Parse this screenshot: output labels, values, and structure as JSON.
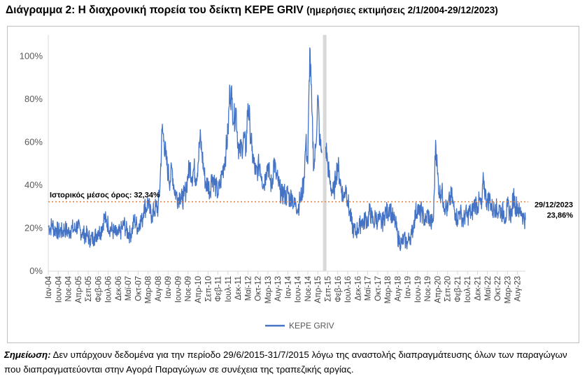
{
  "title": {
    "main": "Διάγραμμα 2: Η διαχρονική πορεία του δείκτη KEPE GRIV",
    "sub": "(ημερήσιες εκτιμήσεις 2/1/2004-29/12/2023)"
  },
  "note": {
    "label": "Σημείωση:",
    "text": " Δεν υπάρχουν δεδομένα για την περίοδο 29/6/2015-31/7/2015 λόγω της αναστολής διαπραγμάτευσης όλων των παραγώγων που διαπραγματεύονται στην Αγορά Παραγώγων σε συνέχεια της τραπεζικής αργίας."
  },
  "colors": {
    "series": "#4472c4",
    "mean_line": "#ed7d31",
    "gap_band": "#d9d9d9",
    "axis": "#d9d9d9"
  },
  "chart_data": {
    "type": "line",
    "x_unit": "month",
    "x_start": "2004-01",
    "x_end": "2023-12",
    "ylim": [
      0,
      1.1
    ],
    "ytick_labels": [
      "0%",
      "20%",
      "40%",
      "60%",
      "80%",
      "100%"
    ],
    "ytick_values": [
      0,
      0.2,
      0.4,
      0.6,
      0.8,
      1.0
    ],
    "xtick_labels": [
      "Ιαν-04",
      "Ιουν-04",
      "Νοε-04",
      "Απρ-05",
      "Σεπ-05",
      "Φεβ-06",
      "Ιουλ-06",
      "Δεκ-06",
      "Μαϊ-07",
      "Οκτ-07",
      "Μαρ-08",
      "Αυγ-08",
      "Ιαν-09",
      "Ιουν-09",
      "Νοε-09",
      "Απρ-10",
      "Σεπ-10",
      "Φεβ-11",
      "Ιουλ-11",
      "Δεκ-11",
      "Μαϊ-12",
      "Οκτ-12",
      "Μαρ-13",
      "Αυγ-13",
      "Ιαν-14",
      "Ιουν-14",
      "Νοε-14",
      "Απρ-15",
      "Σεπ-15",
      "Φεβ-16",
      "Ιουλ-16",
      "Δεκ-16",
      "Μαϊ-17",
      "Οκτ-17",
      "Μαρ-18",
      "Αυγ-18",
      "Ιαν-19",
      "Ιουν-19",
      "Νοε-19",
      "Απρ-20",
      "Σεπ-20",
      "Φεβ-21",
      "Ιουλ-21",
      "Δεκ-21",
      "Μαϊ-22",
      "Οκτ-22",
      "Μαρ-23",
      "Αυγ-23"
    ],
    "xtick_step_months": 5,
    "series": [
      {
        "name": "KEPE GRIV",
        "points": [
          [
            "2004-01",
            0.21
          ],
          [
            "2004-02",
            0.2
          ],
          [
            "2004-03",
            0.22
          ],
          [
            "2004-04",
            0.19
          ],
          [
            "2004-05",
            0.2
          ],
          [
            "2004-06",
            0.18
          ],
          [
            "2004-07",
            0.19
          ],
          [
            "2004-08",
            0.18
          ],
          [
            "2004-09",
            0.2
          ],
          [
            "2004-10",
            0.19
          ],
          [
            "2004-11",
            0.18
          ],
          [
            "2004-12",
            0.19
          ],
          [
            "2005-01",
            0.2
          ],
          [
            "2005-02",
            0.19
          ],
          [
            "2005-03",
            0.21
          ],
          [
            "2005-04",
            0.2
          ],
          [
            "2005-05",
            0.19
          ],
          [
            "2005-06",
            0.18
          ],
          [
            "2005-07",
            0.17
          ],
          [
            "2005-08",
            0.17
          ],
          [
            "2005-09",
            0.16
          ],
          [
            "2005-10",
            0.15
          ],
          [
            "2005-11",
            0.15
          ],
          [
            "2005-12",
            0.16
          ],
          [
            "2006-01",
            0.17
          ],
          [
            "2006-02",
            0.19
          ],
          [
            "2006-03",
            0.18
          ],
          [
            "2006-04",
            0.21
          ],
          [
            "2006-05",
            0.25
          ],
          [
            "2006-06",
            0.23
          ],
          [
            "2006-07",
            0.22
          ],
          [
            "2006-08",
            0.2
          ],
          [
            "2006-09",
            0.19
          ],
          [
            "2006-10",
            0.18
          ],
          [
            "2006-11",
            0.17
          ],
          [
            "2006-12",
            0.17
          ],
          [
            "2007-01",
            0.18
          ],
          [
            "2007-02",
            0.2
          ],
          [
            "2007-03",
            0.22
          ],
          [
            "2007-04",
            0.19
          ],
          [
            "2007-05",
            0.18
          ],
          [
            "2007-06",
            0.17
          ],
          [
            "2007-07",
            0.19
          ],
          [
            "2007-08",
            0.24
          ],
          [
            "2007-09",
            0.22
          ],
          [
            "2007-10",
            0.2
          ],
          [
            "2007-11",
            0.24
          ],
          [
            "2007-12",
            0.23
          ],
          [
            "2008-01",
            0.31
          ],
          [
            "2008-02",
            0.29
          ],
          [
            "2008-03",
            0.33
          ],
          [
            "2008-04",
            0.27
          ],
          [
            "2008-05",
            0.26
          ],
          [
            "2008-06",
            0.28
          ],
          [
            "2008-07",
            0.3
          ],
          [
            "2008-08",
            0.29
          ],
          [
            "2008-09",
            0.41
          ],
          [
            "2008-10",
            0.66
          ],
          [
            "2008-11",
            0.61
          ],
          [
            "2008-12",
            0.52
          ],
          [
            "2009-01",
            0.46
          ],
          [
            "2009-02",
            0.42
          ],
          [
            "2009-03",
            0.48
          ],
          [
            "2009-04",
            0.39
          ],
          [
            "2009-05",
            0.36
          ],
          [
            "2009-06",
            0.34
          ],
          [
            "2009-07",
            0.36
          ],
          [
            "2009-08",
            0.33
          ],
          [
            "2009-09",
            0.35
          ],
          [
            "2009-10",
            0.38
          ],
          [
            "2009-11",
            0.45
          ],
          [
            "2009-12",
            0.49
          ],
          [
            "2010-01",
            0.44
          ],
          [
            "2010-02",
            0.48
          ],
          [
            "2010-03",
            0.43
          ],
          [
            "2010-04",
            0.5
          ],
          [
            "2010-05",
            0.62
          ],
          [
            "2010-06",
            0.55
          ],
          [
            "2010-07",
            0.46
          ],
          [
            "2010-08",
            0.4
          ],
          [
            "2010-09",
            0.41
          ],
          [
            "2010-10",
            0.37
          ],
          [
            "2010-11",
            0.45
          ],
          [
            "2010-12",
            0.42
          ],
          [
            "2011-01",
            0.39
          ],
          [
            "2011-02",
            0.36
          ],
          [
            "2011-03",
            0.4
          ],
          [
            "2011-04",
            0.45
          ],
          [
            "2011-05",
            0.5
          ],
          [
            "2011-06",
            0.56
          ],
          [
            "2011-07",
            0.64
          ],
          [
            "2011-08",
            0.85
          ],
          [
            "2011-09",
            0.8
          ],
          [
            "2011-10",
            0.7
          ],
          [
            "2011-11",
            0.76
          ],
          [
            "2011-12",
            0.6
          ],
          [
            "2012-01",
            0.55
          ],
          [
            "2012-02",
            0.58
          ],
          [
            "2012-03",
            0.62
          ],
          [
            "2012-04",
            0.56
          ],
          [
            "2012-05",
            0.78
          ],
          [
            "2012-06",
            0.68
          ],
          [
            "2012-07",
            0.56
          ],
          [
            "2012-08",
            0.5
          ],
          [
            "2012-09",
            0.45
          ],
          [
            "2012-10",
            0.48
          ],
          [
            "2012-11",
            0.5
          ],
          [
            "2012-12",
            0.44
          ],
          [
            "2013-01",
            0.4
          ],
          [
            "2013-02",
            0.46
          ],
          [
            "2013-03",
            0.5
          ],
          [
            "2013-04",
            0.43
          ],
          [
            "2013-05",
            0.39
          ],
          [
            "2013-06",
            0.52
          ],
          [
            "2013-07",
            0.45
          ],
          [
            "2013-08",
            0.42
          ],
          [
            "2013-09",
            0.38
          ],
          [
            "2013-10",
            0.35
          ],
          [
            "2013-11",
            0.37
          ],
          [
            "2013-12",
            0.34
          ],
          [
            "2014-01",
            0.37
          ],
          [
            "2014-02",
            0.33
          ],
          [
            "2014-03",
            0.36
          ],
          [
            "2014-04",
            0.3
          ],
          [
            "2014-05",
            0.32
          ],
          [
            "2014-06",
            0.29
          ],
          [
            "2014-07",
            0.33
          ],
          [
            "2014-08",
            0.36
          ],
          [
            "2014-09",
            0.42
          ],
          [
            "2014-10",
            0.6
          ],
          [
            "2014-11",
            0.5
          ],
          [
            "2014-12",
            1.04
          ],
          [
            "2015-01",
            0.75
          ],
          [
            "2015-02",
            0.48
          ],
          [
            "2015-03",
            0.58
          ],
          [
            "2015-04",
            0.82
          ],
          [
            "2015-05",
            0.6
          ],
          [
            "2015-06",
            0.55
          ],
          [
            "2015-07",
            null
          ],
          [
            "2015-08",
            0.58
          ],
          [
            "2015-09",
            0.5
          ],
          [
            "2015-10",
            0.42
          ],
          [
            "2015-11",
            0.38
          ],
          [
            "2015-12",
            0.36
          ],
          [
            "2016-01",
            0.44
          ],
          [
            "2016-02",
            0.5
          ],
          [
            "2016-03",
            0.43
          ],
          [
            "2016-04",
            0.38
          ],
          [
            "2016-05",
            0.34
          ],
          [
            "2016-06",
            0.4
          ],
          [
            "2016-07",
            0.33
          ],
          [
            "2016-08",
            0.27
          ],
          [
            "2016-09",
            0.22
          ],
          [
            "2016-10",
            0.19
          ],
          [
            "2016-11",
            0.18
          ],
          [
            "2016-12",
            0.2
          ],
          [
            "2017-01",
            0.21
          ],
          [
            "2017-02",
            0.24
          ],
          [
            "2017-03",
            0.22
          ],
          [
            "2017-04",
            0.25
          ],
          [
            "2017-05",
            0.23
          ],
          [
            "2017-06",
            0.28
          ],
          [
            "2017-07",
            0.25
          ],
          [
            "2017-08",
            0.22
          ],
          [
            "2017-09",
            0.26
          ],
          [
            "2017-10",
            0.23
          ],
          [
            "2017-11",
            0.24
          ],
          [
            "2017-12",
            0.22
          ],
          [
            "2018-01",
            0.24
          ],
          [
            "2018-02",
            0.28
          ],
          [
            "2018-03",
            0.27
          ],
          [
            "2018-04",
            0.31
          ],
          [
            "2018-05",
            0.26
          ],
          [
            "2018-06",
            0.24
          ],
          [
            "2018-07",
            0.22
          ],
          [
            "2018-08",
            0.16
          ],
          [
            "2018-09",
            0.14
          ],
          [
            "2018-10",
            0.13
          ],
          [
            "2018-11",
            0.15
          ],
          [
            "2018-12",
            0.14
          ],
          [
            "2019-01",
            0.13
          ],
          [
            "2019-02",
            0.16
          ],
          [
            "2019-03",
            0.17
          ],
          [
            "2019-04",
            0.22
          ],
          [
            "2019-05",
            0.27
          ],
          [
            "2019-06",
            0.3
          ],
          [
            "2019-07",
            0.26
          ],
          [
            "2019-08",
            0.28
          ],
          [
            "2019-09",
            0.25
          ],
          [
            "2019-10",
            0.23
          ],
          [
            "2019-11",
            0.27
          ],
          [
            "2019-12",
            0.24
          ],
          [
            "2020-01",
            0.22
          ],
          [
            "2020-02",
            0.25
          ],
          [
            "2020-03",
            0.61
          ],
          [
            "2020-04",
            0.45
          ],
          [
            "2020-05",
            0.36
          ],
          [
            "2020-06",
            0.38
          ],
          [
            "2020-07",
            0.32
          ],
          [
            "2020-08",
            0.3
          ],
          [
            "2020-09",
            0.28
          ],
          [
            "2020-10",
            0.33
          ],
          [
            "2020-11",
            0.35
          ],
          [
            "2020-12",
            0.3
          ],
          [
            "2021-01",
            0.27
          ],
          [
            "2021-02",
            0.24
          ],
          [
            "2021-03",
            0.28
          ],
          [
            "2021-04",
            0.26
          ],
          [
            "2021-05",
            0.23
          ],
          [
            "2021-06",
            0.27
          ],
          [
            "2021-07",
            0.25
          ],
          [
            "2021-08",
            0.28
          ],
          [
            "2021-09",
            0.26
          ],
          [
            "2021-10",
            0.3
          ],
          [
            "2021-11",
            0.32
          ],
          [
            "2021-12",
            0.3
          ],
          [
            "2022-01",
            0.33
          ],
          [
            "2022-02",
            0.29
          ],
          [
            "2022-03",
            0.43
          ],
          [
            "2022-04",
            0.35
          ],
          [
            "2022-05",
            0.32
          ],
          [
            "2022-06",
            0.34
          ],
          [
            "2022-07",
            0.3
          ],
          [
            "2022-08",
            0.28
          ],
          [
            "2022-09",
            0.31
          ],
          [
            "2022-10",
            0.27
          ],
          [
            "2022-11",
            0.3
          ],
          [
            "2022-12",
            0.27
          ],
          [
            "2023-01",
            0.28
          ],
          [
            "2023-02",
            0.25
          ],
          [
            "2023-03",
            0.3
          ],
          [
            "2023-04",
            0.28
          ],
          [
            "2023-05",
            0.26
          ],
          [
            "2023-06",
            0.36
          ],
          [
            "2023-07",
            0.3
          ],
          [
            "2023-08",
            0.31
          ],
          [
            "2023-09",
            0.27
          ],
          [
            "2023-10",
            0.28
          ],
          [
            "2023-11",
            0.25
          ],
          [
            "2023-12",
            0.2386
          ]
        ]
      }
    ],
    "mean_line": {
      "value": 0.3234,
      "label": "Ιστορικός μέσος όρος: 32,34%"
    },
    "gap_period": {
      "start": "2015-06-29",
      "end": "2015-07-31"
    },
    "end_annotation": {
      "date": "29/12/2023",
      "value": "23,86%"
    },
    "legend": {
      "position": "bottom-center",
      "entries": [
        "KEPE GRIV"
      ]
    }
  }
}
